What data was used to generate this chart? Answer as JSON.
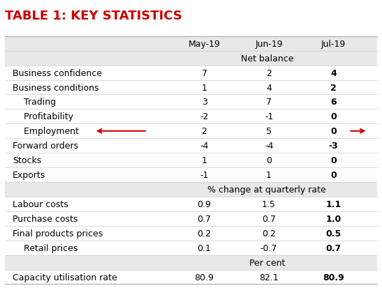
{
  "title": "TABLE 1: KEY STATISTICS",
  "title_color": "#cc0000",
  "bg_color_header": "#e8e8e8",
  "bg_color_subheader": "#e8e8e8",
  "bg_color_white": "#ffffff",
  "arrow_color": "#cc0000",
  "col_x": {
    "label": 0.03,
    "may": 0.535,
    "jun": 0.705,
    "jul": 0.875
  },
  "row_defs": [
    {
      "type": "header",
      "may": "May-19",
      "jun": "Jun-19",
      "jul": "Jul-19"
    },
    {
      "type": "subheader",
      "text": "Net balance"
    },
    {
      "type": "data",
      "label": "Business confidence",
      "indent": false,
      "may": "7",
      "jun": "2",
      "jul": "4"
    },
    {
      "type": "data",
      "label": "Business conditions",
      "indent": false,
      "may": "1",
      "jun": "4",
      "jul": "2"
    },
    {
      "type": "data",
      "label": "    Trading",
      "indent": true,
      "may": "3",
      "jun": "7",
      "jul": "6"
    },
    {
      "type": "data",
      "label": "    Profitability",
      "indent": true,
      "may": "-2",
      "jun": "-1",
      "jul": "0"
    },
    {
      "type": "data",
      "label": "    Employment",
      "indent": true,
      "may": "2",
      "jun": "5",
      "jul": "0",
      "arrow": true
    },
    {
      "type": "data",
      "label": "Forward orders",
      "indent": false,
      "may": "-4",
      "jun": "-4",
      "jul": "-3"
    },
    {
      "type": "data",
      "label": "Stocks",
      "indent": false,
      "may": "1",
      "jun": "0",
      "jul": "0"
    },
    {
      "type": "data",
      "label": "Exports",
      "indent": false,
      "may": "-1",
      "jun": "1",
      "jul": "0"
    },
    {
      "type": "subheader",
      "text": "% change at quarterly rate"
    },
    {
      "type": "data",
      "label": "Labour costs",
      "indent": false,
      "may": "0.9",
      "jun": "1.5",
      "jul": "1.1"
    },
    {
      "type": "data",
      "label": "Purchase costs",
      "indent": false,
      "may": "0.7",
      "jun": "0.7",
      "jul": "1.0"
    },
    {
      "type": "data",
      "label": "Final products prices",
      "indent": false,
      "may": "0.2",
      "jun": "0.2",
      "jul": "0.5"
    },
    {
      "type": "data",
      "label": "    Retail prices",
      "indent": true,
      "may": "0.1",
      "jun": "-0.7",
      "jul": "0.7"
    },
    {
      "type": "subheader",
      "text": "Per cent"
    },
    {
      "type": "data",
      "label": "Capacity utilisation rate",
      "indent": false,
      "may": "80.9",
      "jun": "82.1",
      "jul": "80.9"
    }
  ]
}
